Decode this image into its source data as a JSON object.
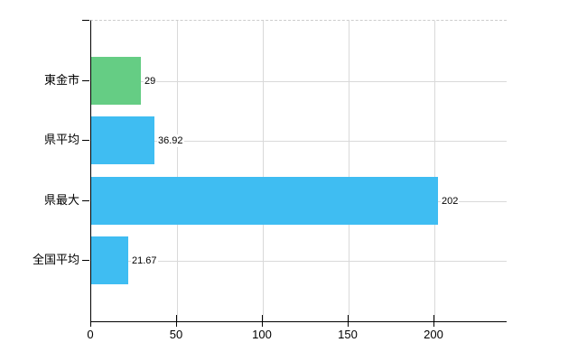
{
  "chart_data": {
    "type": "bar",
    "orientation": "horizontal",
    "title": "",
    "xlabel": "",
    "ylabel": "",
    "categories": [
      "東金市",
      "県平均",
      "県最大",
      "全国平均"
    ],
    "values": [
      29,
      36.92,
      202,
      21.67
    ],
    "value_labels": [
      "29",
      "36.92",
      "202",
      "21.67"
    ],
    "bar_colors": [
      "#65cd84",
      "#3fbdf2",
      "#3fbdf2",
      "#3fbdf2"
    ],
    "x_ticks": [
      0,
      50,
      100,
      150,
      200
    ],
    "x_tick_labels": [
      "0",
      "50",
      "100",
      "150",
      "200"
    ],
    "xlim": [
      0,
      242
    ],
    "grid": true,
    "legend": false
  },
  "colors": {
    "axis": "#000000",
    "gridline": "#d9d9d9",
    "plot_top_border": "#cccccc",
    "background": "#ffffff",
    "green_bar": "#65cd84",
    "blue_bar": "#3fbdf2",
    "text": "#000000"
  }
}
